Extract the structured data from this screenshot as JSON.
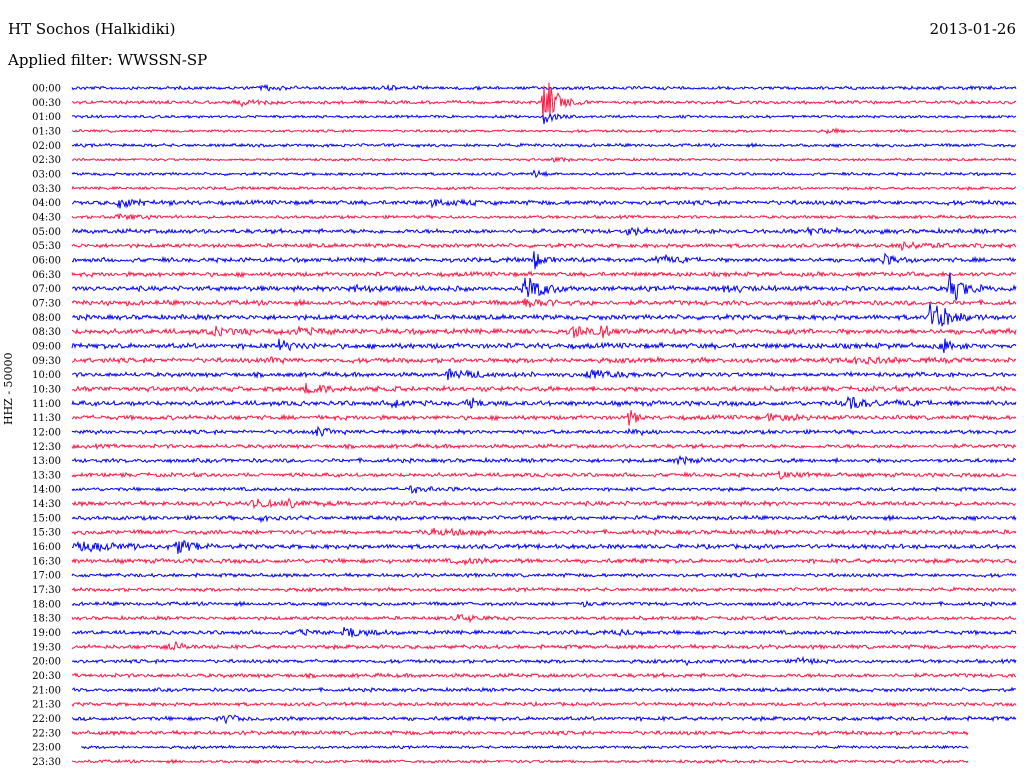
{
  "header": {
    "station": "HT Sochos (Halkidiki)",
    "date": "2013-01-26",
    "filter_prefix": "Applied filter:",
    "filter_name": "WWSSN-SP",
    "channel": "HHZ - 50000"
  },
  "colors": {
    "trace_a": "#0000ff",
    "trace_b": "#ff1744",
    "background": "#ffffff",
    "text": "#000000"
  },
  "chart_data": {
    "type": "helicorder",
    "title": "HT Sochos (Halkidiki)",
    "ylabel": "HHZ - 50000",
    "row_minutes": 30,
    "grid": false,
    "rows": [
      {
        "time": "00:00",
        "color": "trace_a",
        "amp": 1.5,
        "events": [
          {
            "x": 0.2,
            "amp": 4,
            "w": 0.01
          },
          {
            "x": 0.33,
            "amp": 2,
            "w": 0.02
          }
        ]
      },
      {
        "time": "00:30",
        "color": "trace_b",
        "amp": 1.5,
        "events": [
          {
            "x": 0.5,
            "amp": 28,
            "w": 0.012
          },
          {
            "x": 0.18,
            "amp": 3,
            "w": 0.015
          }
        ]
      },
      {
        "time": "01:00",
        "color": "trace_a",
        "amp": 1.2,
        "events": [
          {
            "x": 0.5,
            "amp": 8,
            "w": 0.01
          }
        ]
      },
      {
        "time": "01:30",
        "color": "trace_b",
        "amp": 1.2,
        "events": [
          {
            "x": 0.8,
            "amp": 2,
            "w": 0.01
          }
        ]
      },
      {
        "time": "02:00",
        "color": "trace_a",
        "amp": 1.4,
        "events": []
      },
      {
        "time": "02:30",
        "color": "trace_b",
        "amp": 1.2,
        "events": [
          {
            "x": 0.51,
            "amp": 2,
            "w": 0.01
          }
        ]
      },
      {
        "time": "03:00",
        "color": "trace_a",
        "amp": 1.3,
        "events": [
          {
            "x": 0.49,
            "amp": 3,
            "w": 0.01
          }
        ]
      },
      {
        "time": "03:30",
        "color": "trace_b",
        "amp": 1.3,
        "events": []
      },
      {
        "time": "04:00",
        "color": "trace_a",
        "amp": 2.0,
        "events": [
          {
            "x": 0.05,
            "amp": 5,
            "w": 0.015
          },
          {
            "x": 0.38,
            "amp": 3,
            "w": 0.02
          }
        ]
      },
      {
        "time": "04:30",
        "color": "trace_b",
        "amp": 1.4,
        "events": [
          {
            "x": 0.05,
            "amp": 3,
            "w": 0.02
          }
        ]
      },
      {
        "time": "05:00",
        "color": "trace_a",
        "amp": 2.0,
        "events": [
          {
            "x": 0.59,
            "amp": 4,
            "w": 0.015
          },
          {
            "x": 0.78,
            "amp": 3,
            "w": 0.02
          }
        ]
      },
      {
        "time": "05:30",
        "color": "trace_b",
        "amp": 1.8,
        "events": [
          {
            "x": 0.88,
            "amp": 3,
            "w": 0.03
          }
        ]
      },
      {
        "time": "06:00",
        "color": "trace_a",
        "amp": 2.0,
        "events": [
          {
            "x": 0.49,
            "amp": 10,
            "w": 0.008
          },
          {
            "x": 0.62,
            "amp": 5,
            "w": 0.015
          },
          {
            "x": 0.86,
            "amp": 4,
            "w": 0.015
          }
        ]
      },
      {
        "time": "06:30",
        "color": "trace_b",
        "amp": 2.0,
        "events": []
      },
      {
        "time": "07:00",
        "color": "trace_a",
        "amp": 2.2,
        "events": [
          {
            "x": 0.48,
            "amp": 16,
            "w": 0.015
          },
          {
            "x": 0.3,
            "amp": 3,
            "w": 0.03
          },
          {
            "x": 0.69,
            "amp": 3,
            "w": 0.02
          },
          {
            "x": 0.93,
            "amp": 14,
            "w": 0.015
          }
        ]
      },
      {
        "time": "07:30",
        "color": "trace_b",
        "amp": 2.2,
        "events": [
          {
            "x": 0.48,
            "amp": 5,
            "w": 0.02
          }
        ]
      },
      {
        "time": "08:00",
        "color": "trace_a",
        "amp": 2.2,
        "events": [
          {
            "x": 0.91,
            "amp": 18,
            "w": 0.015
          }
        ]
      },
      {
        "time": "08:30",
        "color": "trace_b",
        "amp": 2.4,
        "events": [
          {
            "x": 0.53,
            "amp": 7,
            "w": 0.01
          },
          {
            "x": 0.56,
            "amp": 6,
            "w": 0.01
          },
          {
            "x": 0.15,
            "amp": 3,
            "w": 0.02
          },
          {
            "x": 0.24,
            "amp": 3,
            "w": 0.02
          }
        ]
      },
      {
        "time": "09:00",
        "color": "trace_a",
        "amp": 2.4,
        "events": [
          {
            "x": 0.22,
            "amp": 6,
            "w": 0.01
          },
          {
            "x": 0.92,
            "amp": 8,
            "w": 0.01
          }
        ]
      },
      {
        "time": "09:30",
        "color": "trace_b",
        "amp": 2.2,
        "events": [
          {
            "x": 0.21,
            "amp": 4,
            "w": 0.01
          },
          {
            "x": 0.83,
            "amp": 3,
            "w": 0.03
          }
        ]
      },
      {
        "time": "10:00",
        "color": "trace_a",
        "amp": 2.0,
        "events": [
          {
            "x": 0.4,
            "amp": 4,
            "w": 0.03
          },
          {
            "x": 0.55,
            "amp": 4,
            "w": 0.03
          }
        ]
      },
      {
        "time": "10:30",
        "color": "trace_b",
        "amp": 2.2,
        "events": [
          {
            "x": 0.25,
            "amp": 4,
            "w": 0.03
          }
        ]
      },
      {
        "time": "11:00",
        "color": "trace_a",
        "amp": 2.2,
        "events": [
          {
            "x": 0.42,
            "amp": 5,
            "w": 0.01
          },
          {
            "x": 0.82,
            "amp": 5,
            "w": 0.03
          },
          {
            "x": 0.34,
            "amp": 4,
            "w": 0.01
          }
        ]
      },
      {
        "time": "11:30",
        "color": "trace_b",
        "amp": 2.0,
        "events": [
          {
            "x": 0.59,
            "amp": 10,
            "w": 0.006
          },
          {
            "x": 0.74,
            "amp": 3,
            "w": 0.03
          }
        ]
      },
      {
        "time": "12:00",
        "color": "trace_a",
        "amp": 1.8,
        "events": [
          {
            "x": 0.26,
            "amp": 3,
            "w": 0.02
          },
          {
            "x": 0.59,
            "amp": 4,
            "w": 0.01
          }
        ]
      },
      {
        "time": "12:30",
        "color": "trace_b",
        "amp": 1.8,
        "events": []
      },
      {
        "time": "13:00",
        "color": "trace_a",
        "amp": 1.8,
        "events": [
          {
            "x": 0.64,
            "amp": 4,
            "w": 0.015
          }
        ]
      },
      {
        "time": "13:30",
        "color": "trace_b",
        "amp": 1.8,
        "events": [
          {
            "x": 0.75,
            "amp": 3,
            "w": 0.02
          }
        ]
      },
      {
        "time": "14:00",
        "color": "trace_a",
        "amp": 1.6,
        "events": [
          {
            "x": 0.36,
            "amp": 3,
            "w": 0.02
          }
        ]
      },
      {
        "time": "14:30",
        "color": "trace_b",
        "amp": 2.0,
        "events": [
          {
            "x": 0.19,
            "amp": 6,
            "w": 0.015
          },
          {
            "x": 0.23,
            "amp": 3,
            "w": 0.02
          }
        ]
      },
      {
        "time": "15:00",
        "color": "trace_a",
        "amp": 1.8,
        "events": [
          {
            "x": 0.2,
            "amp": 3,
            "w": 0.01
          }
        ]
      },
      {
        "time": "15:30",
        "color": "trace_b",
        "amp": 2.0,
        "events": [
          {
            "x": 0.38,
            "amp": 3,
            "w": 0.03
          }
        ]
      },
      {
        "time": "16:00",
        "color": "trace_a",
        "amp": 2.0,
        "events": [
          {
            "x": 0.01,
            "amp": 4,
            "w": 0.04
          },
          {
            "x": 0.11,
            "amp": 9,
            "w": 0.015
          }
        ]
      },
      {
        "time": "16:30",
        "color": "trace_b",
        "amp": 2.0,
        "events": [
          {
            "x": 0.41,
            "amp": 3,
            "w": 0.02
          }
        ]
      },
      {
        "time": "17:00",
        "color": "trace_a",
        "amp": 1.6,
        "events": []
      },
      {
        "time": "17:30",
        "color": "trace_b",
        "amp": 1.6,
        "events": []
      },
      {
        "time": "18:00",
        "color": "trace_a",
        "amp": 1.6,
        "events": [
          {
            "x": 0.54,
            "amp": 3,
            "w": 0.01
          }
        ]
      },
      {
        "time": "18:30",
        "color": "trace_b",
        "amp": 1.6,
        "events": [
          {
            "x": 0.41,
            "amp": 3,
            "w": 0.02
          }
        ]
      },
      {
        "time": "19:00",
        "color": "trace_a",
        "amp": 1.8,
        "events": [
          {
            "x": 0.29,
            "amp": 7,
            "w": 0.015
          },
          {
            "x": 0.24,
            "amp": 3,
            "w": 0.01
          },
          {
            "x": 0.58,
            "amp": 3,
            "w": 0.01
          }
        ]
      },
      {
        "time": "19:30",
        "color": "trace_b",
        "amp": 1.8,
        "events": [
          {
            "x": 0.1,
            "amp": 5,
            "w": 0.015
          }
        ]
      },
      {
        "time": "20:00",
        "color": "trace_a",
        "amp": 1.6,
        "events": [
          {
            "x": 0.65,
            "amp": 3,
            "w": 0.01
          },
          {
            "x": 0.77,
            "amp": 3,
            "w": 0.01
          }
        ]
      },
      {
        "time": "20:30",
        "color": "trace_b",
        "amp": 1.8,
        "events": []
      },
      {
        "time": "21:00",
        "color": "trace_a",
        "amp": 1.6,
        "events": []
      },
      {
        "time": "21:30",
        "color": "trace_b",
        "amp": 1.6,
        "events": []
      },
      {
        "time": "22:00",
        "color": "trace_a",
        "amp": 1.8,
        "events": [
          {
            "x": 0.16,
            "amp": 3,
            "w": 0.02
          }
        ]
      },
      {
        "time": "22:30",
        "color": "trace_b",
        "amp": 1.8,
        "events": [],
        "end": 0.95
      },
      {
        "time": "23:00",
        "color": "trace_a",
        "amp": 1.2,
        "events": [],
        "start": 0.01,
        "end": 0.95
      },
      {
        "time": "23:30",
        "color": "trace_b",
        "amp": 1.4,
        "events": [],
        "end": 0.95
      }
    ]
  }
}
